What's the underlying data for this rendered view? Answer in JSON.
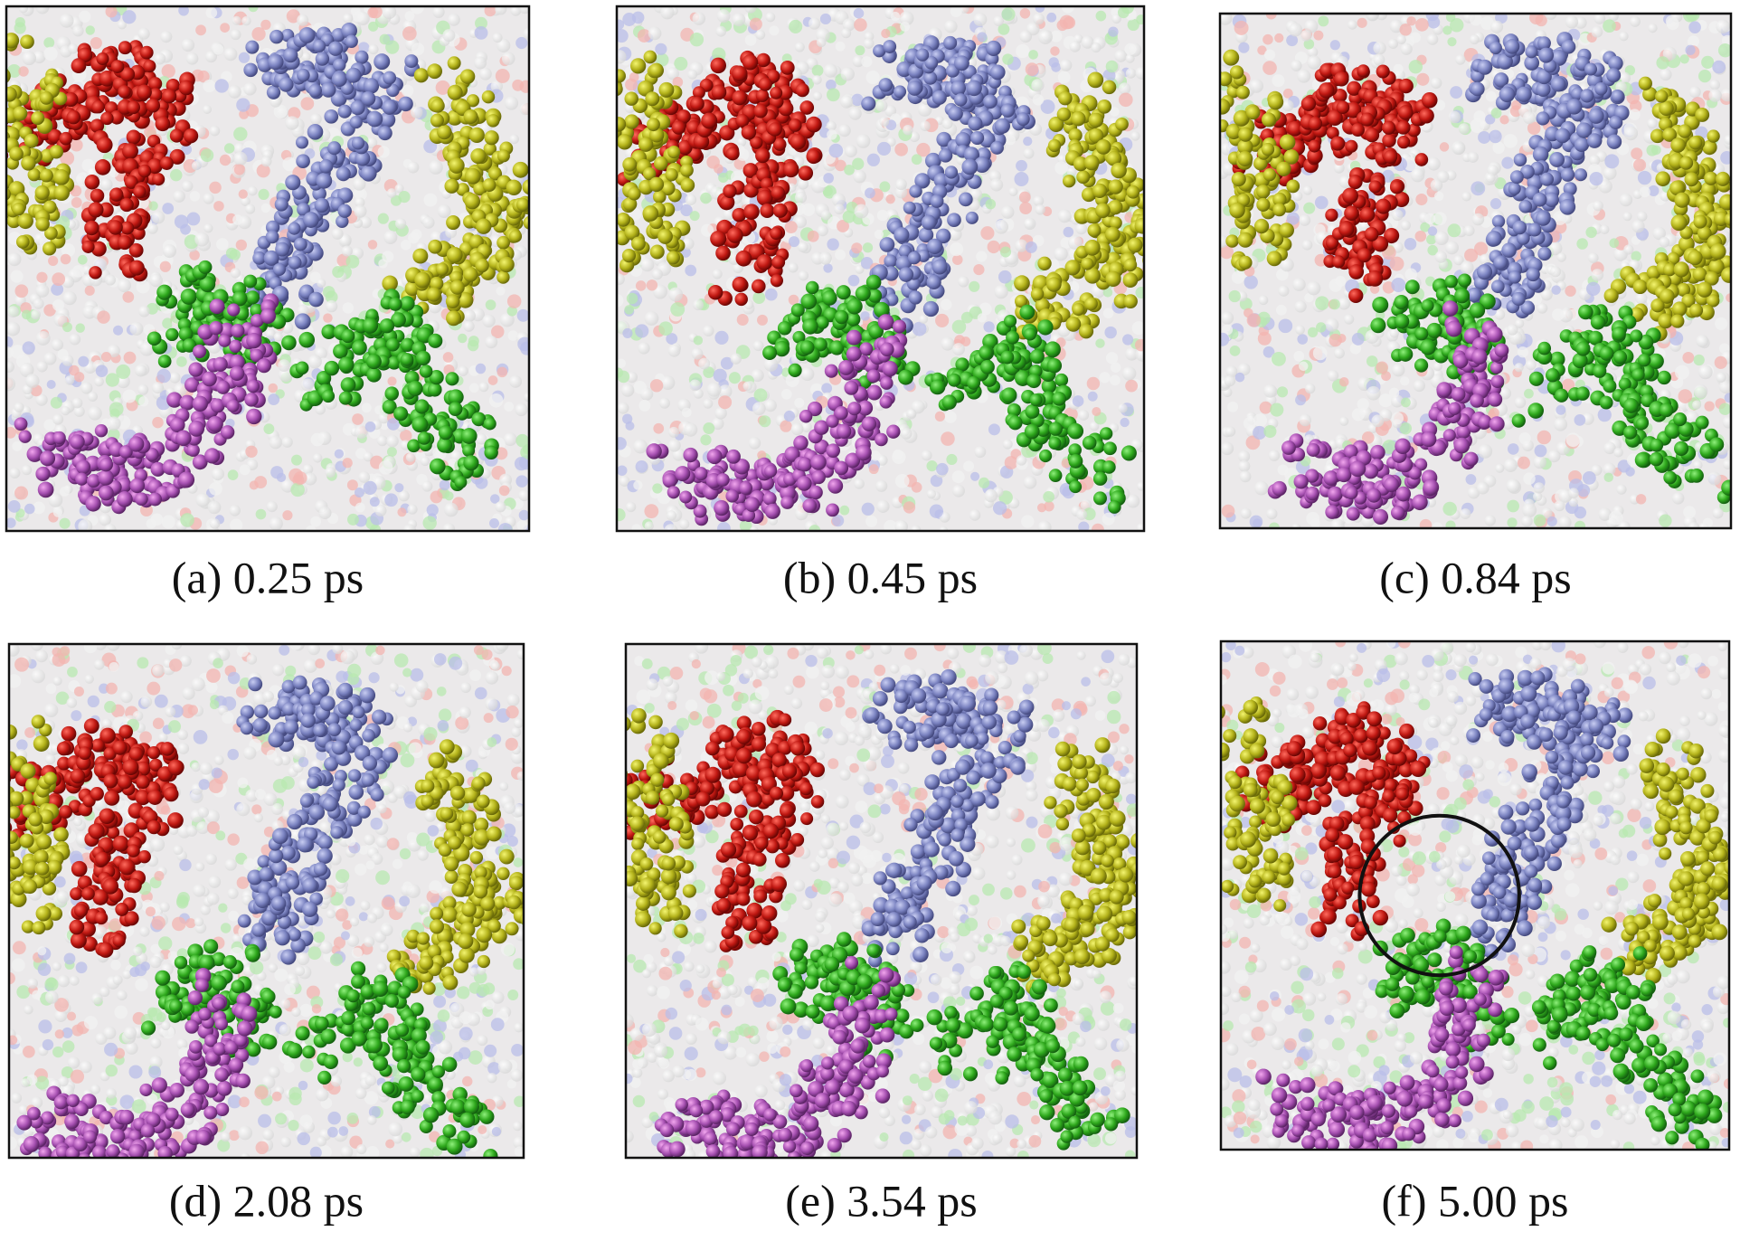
{
  "panels": [
    {
      "caption": "(a) 0.25 ps"
    },
    {
      "caption": "(b) 0.45 ps"
    },
    {
      "caption": "(c) 0.84 ps"
    },
    {
      "caption": "(d) 2.08 ps"
    },
    {
      "caption": "(e) 3.54 ps"
    },
    {
      "caption": "(f) 5.00 ps"
    }
  ]
}
